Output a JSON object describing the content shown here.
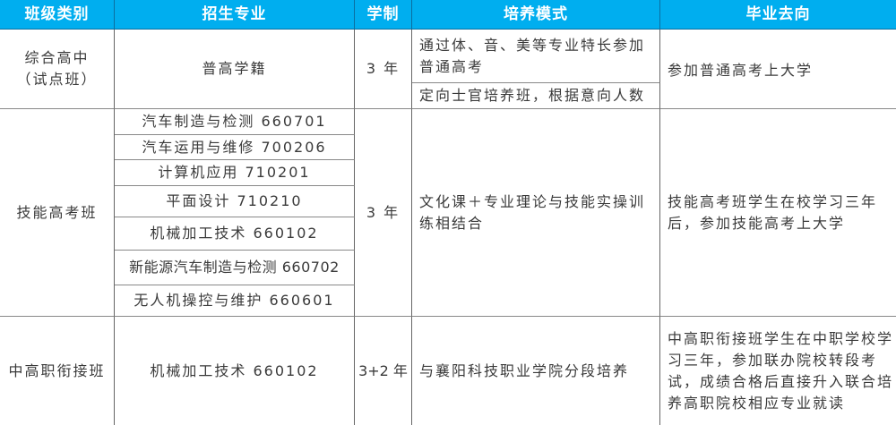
{
  "header": {
    "col1": "班级类别",
    "col2": "招生专业",
    "col3": "学制",
    "col4": "培养模式",
    "col5": "毕业去向"
  },
  "rows": [
    {
      "category": "综合高中\n（试点班）",
      "majors": [
        "普高学籍"
      ],
      "duration": "3 年",
      "modes": [
        "通过体、音、美等专业特长参加普通高考",
        "定向士官培养班，根据意向人数"
      ],
      "destination": "参加普通高考上大学"
    },
    {
      "category": "技能高考班",
      "majors": [
        "汽车制造与检测 660701",
        "汽车运用与维修 700206",
        "计算机应用 710201",
        "平面设计 710210",
        "机械加工技术 660102",
        "新能源汽车制造与检测 660702",
        "无人机操控与维护 660601"
      ],
      "duration": "3 年",
      "modes": [
        "文化课＋专业理论与技能实操训练相结合"
      ],
      "destination": "技能高考班学生在校学习三年后，参加技能高考上大学"
    },
    {
      "category": "中高职衔接班",
      "majors": [
        "机械加工技术 660102"
      ],
      "duration": "3+2 年",
      "modes": [
        "与襄阳科技职业学院分段培养"
      ],
      "destination": "中高职衔接班学生在中职学校学习三年，参加联办院校转段考试，成绩合格后直接升入联合培养高职院校相应专业就读"
    }
  ],
  "colors": {
    "header": "#00aeef",
    "header_text": "#ffffff"
  }
}
